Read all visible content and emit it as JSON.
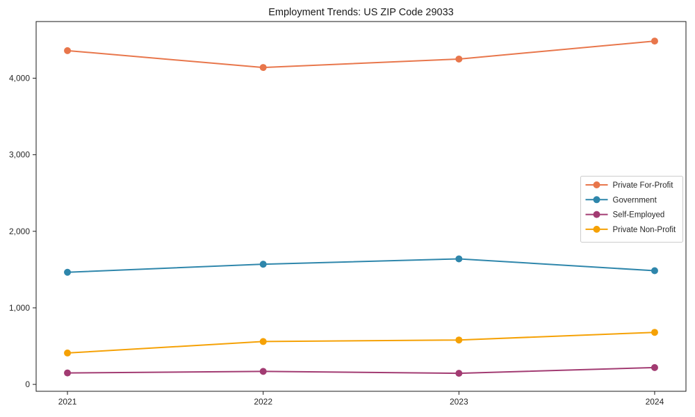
{
  "chart_data": {
    "type": "line",
    "title": "Employment Trends: US ZIP Code 29033",
    "x": [
      2021,
      2022,
      2023,
      2024
    ],
    "x_tick_labels": [
      "2021",
      "2022",
      "2023",
      "2024"
    ],
    "y_ticks": [
      0,
      1000,
      2000,
      3000,
      4000
    ],
    "y_tick_labels": [
      "0",
      "1,000",
      "2,000",
      "3,000",
      "4,000"
    ],
    "xlabel": "",
    "ylabel": "",
    "xlim": [
      2020.84,
      2024.16
    ],
    "ylim": [
      -90,
      4740
    ],
    "grid": false,
    "legend_position": "center right",
    "marker": "circle",
    "series": [
      {
        "name": "Private For-Profit",
        "color": "#E8764B",
        "values": [
          4360,
          4140,
          4250,
          4485
        ]
      },
      {
        "name": "Government",
        "color": "#2E86AB",
        "values": [
          1465,
          1570,
          1640,
          1485
        ]
      },
      {
        "name": "Self-Employed",
        "color": "#A23B72",
        "values": [
          150,
          170,
          145,
          220
        ]
      },
      {
        "name": "Private Non-Profit",
        "color": "#F5A105",
        "values": [
          410,
          560,
          580,
          680
        ]
      }
    ],
    "axis_color": "#1a1a1a",
    "text_color": "#262626",
    "legend_border_color": "#cccccc",
    "legend_background": "#ffffff"
  }
}
